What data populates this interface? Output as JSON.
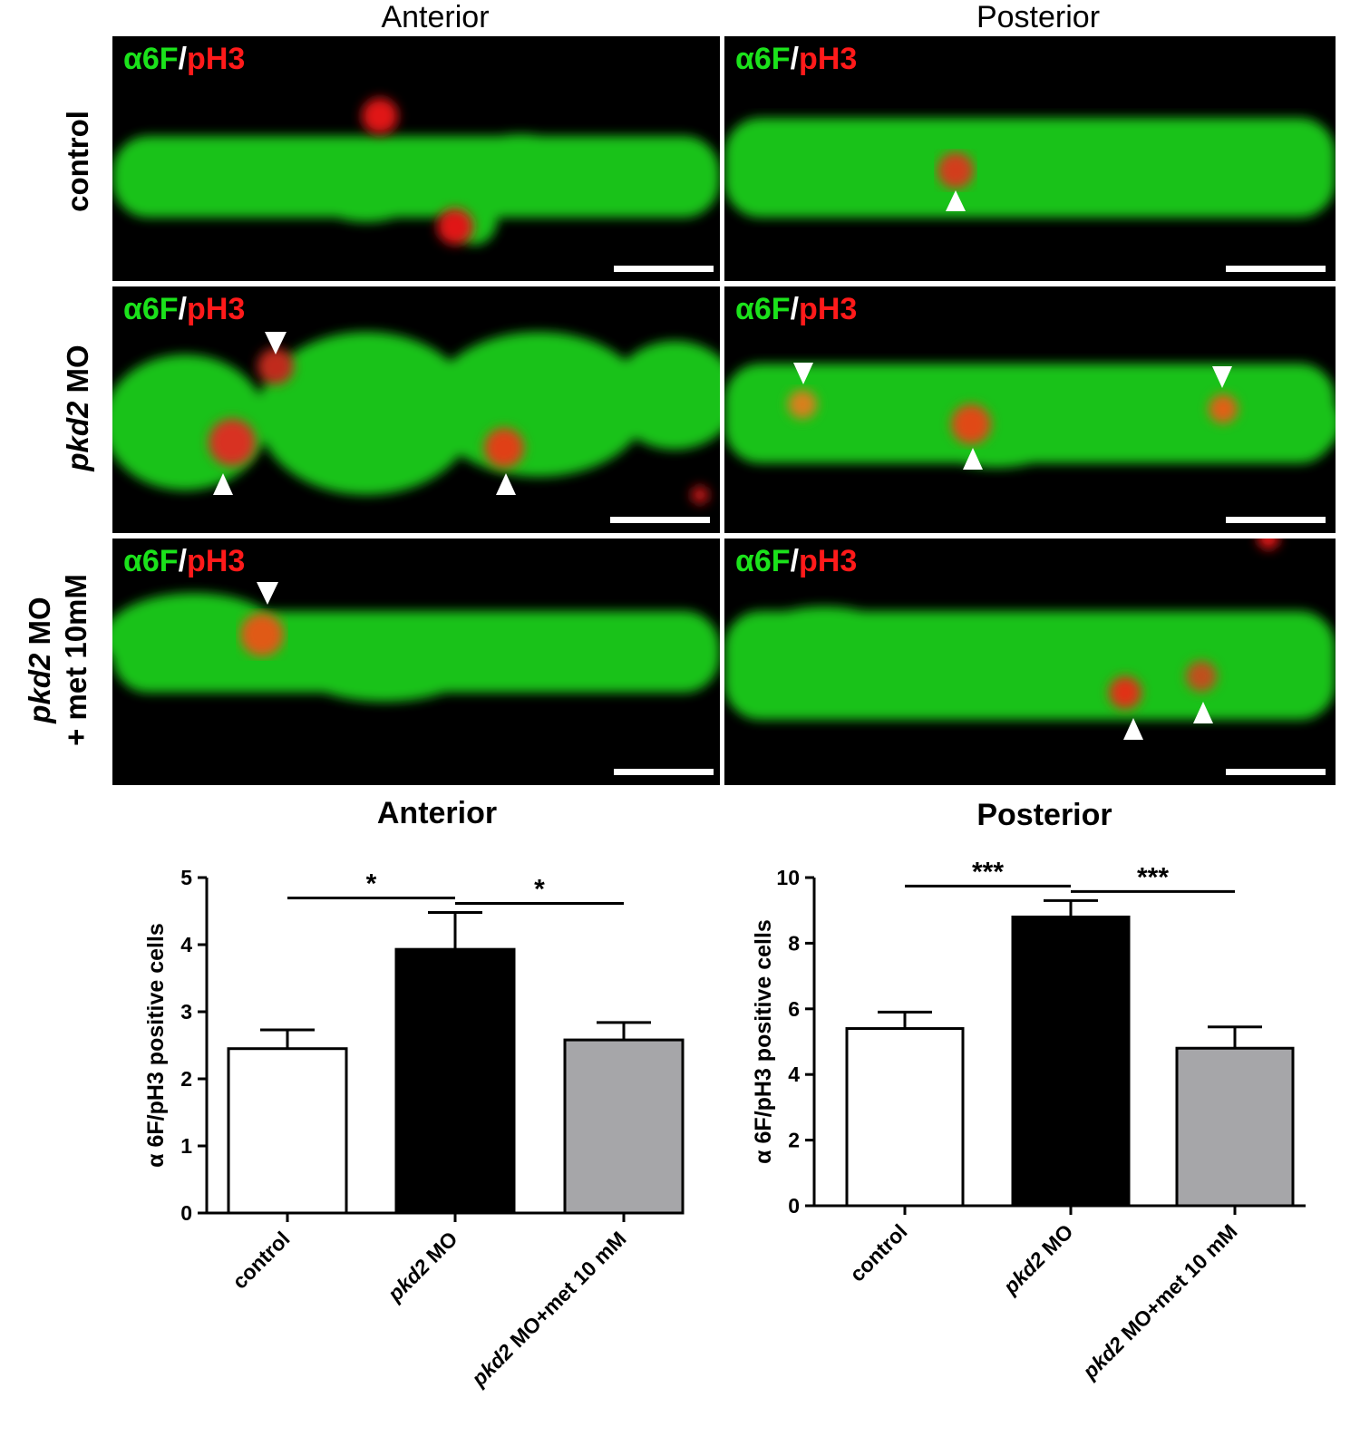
{
  "column_titles": [
    "Anterior",
    "Posterior"
  ],
  "row_labels": [
    {
      "italic": "",
      "normal": "control",
      "line2": ""
    },
    {
      "italic": "pkd2",
      "normal": " MO",
      "line2": ""
    },
    {
      "italic": "pkd2",
      "normal": " MO",
      "line2": "+ met 10mM"
    }
  ],
  "stain_label": {
    "green": "α6F",
    "sep": "/",
    "red": "pH3"
  },
  "colors": {
    "stain_green": "#1be21b",
    "stain_red": "#ff1a1a",
    "bar_control": "#ffffff",
    "bar_pkd2": "#000000",
    "bar_met": "#a6a6a9"
  },
  "chart_data": [
    {
      "type": "bar",
      "title": "Anterior",
      "ylabel": "α 6F/pH3 positive cells",
      "categories": [
        "control",
        "pkd2 MO",
        "pkd2 MO+met 10 mM"
      ],
      "category_italic_prefix": [
        "",
        "pkd2",
        "pkd2"
      ],
      "category_rest": [
        "control",
        " MO",
        " MO+met 10 mM"
      ],
      "values": [
        2.45,
        3.93,
        2.58
      ],
      "errors": [
        0.28,
        0.55,
        0.26
      ],
      "bar_colors": [
        "#ffffff",
        "#000000",
        "#a6a6a9"
      ],
      "ylim": [
        0,
        5
      ],
      "yticks": [
        "0",
        "1",
        "2",
        "3",
        "4",
        "5"
      ],
      "significance": [
        {
          "from": 0,
          "to": 1,
          "label": "*"
        },
        {
          "from": 1,
          "to": 2,
          "label": "*"
        }
      ]
    },
    {
      "type": "bar",
      "title": "Posterior",
      "ylabel": "α 6F/pH3 positive cells",
      "categories": [
        "control",
        "pkd2 MO",
        "pkd2 MO+met 10 mM"
      ],
      "category_italic_prefix": [
        "",
        "pkd2",
        "pkd2"
      ],
      "category_rest": [
        "control",
        " MO",
        " MO+met 10 mM"
      ],
      "values": [
        5.4,
        8.8,
        4.8
      ],
      "errors": [
        0.5,
        0.5,
        0.65
      ],
      "bar_colors": [
        "#ffffff",
        "#000000",
        "#a6a6a9"
      ],
      "ylim": [
        0,
        10
      ],
      "yticks": [
        "0",
        "2",
        "4",
        "6",
        "8",
        "10"
      ],
      "significance": [
        {
          "from": 0,
          "to": 1,
          "label": "***"
        },
        {
          "from": 1,
          "to": 2,
          "label": "***"
        }
      ]
    }
  ]
}
